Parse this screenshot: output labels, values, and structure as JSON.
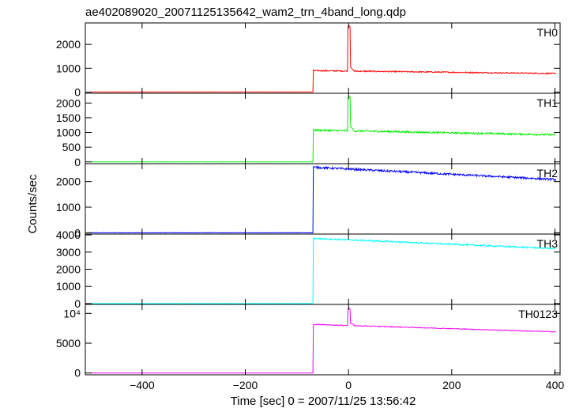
{
  "chart_data": {
    "type": "line",
    "title": "ae402089020_20071125135642_wam2_trn_4band_long.qdp",
    "xlabel": "Time [sec] 0 = 2007/11/25 13:56:42",
    "ylabel": "Counts/sec",
    "xlim": [
      -510,
      410
    ],
    "xticks": [
      -400,
      -200,
      0,
      200,
      400
    ],
    "xtick_labels": [
      "−400",
      "−200",
      "0",
      "200",
      "400"
    ],
    "grid": false,
    "panels": [
      {
        "name": "TH0",
        "color": "#ff0000",
        "ylim": [
          -50,
          2900
        ],
        "yticks": [
          0,
          1000,
          2000
        ],
        "ytick_labels": [
          "0",
          "1000",
          "2000"
        ],
        "baseline": 5,
        "onset": -68,
        "jump": 900,
        "decay_end": 780,
        "peak_time": 2,
        "peak_value": 2800,
        "tail_value": 1100,
        "noise": 25
      },
      {
        "name": "TH1",
        "color": "#00ee00",
        "ylim": [
          -60,
          2330
        ],
        "yticks": [
          0,
          500,
          1000,
          1500,
          2000
        ],
        "ytick_labels": [
          "0",
          "500",
          "1000",
          "1500",
          "2000"
        ],
        "baseline": 0,
        "onset": -68,
        "jump": 1080,
        "decay_end": 920,
        "peak_time": 2,
        "peak_value": 2280,
        "tail_value": 1250,
        "noise": 30
      },
      {
        "name": "TH2",
        "color": "#0000ff",
        "ylim": [
          -50,
          2700
        ],
        "yticks": [
          0,
          1000,
          2000
        ],
        "ytick_labels": [
          "0",
          "1000",
          "2000"
        ],
        "baseline": 0,
        "onset": -68,
        "jump": 2560,
        "decay_end": 2080,
        "peak_time": null,
        "peak_value": null,
        "tail_value": null,
        "noise": 40
      },
      {
        "name": "TH3",
        "color": "#00ffff",
        "ylim": [
          -50,
          4050
        ],
        "yticks": [
          0,
          1000,
          2000,
          3000,
          4000
        ],
        "ytick_labels": [
          "0",
          "1000",
          "2000",
          "3000",
          "4000"
        ],
        "baseline": 0,
        "onset": -68,
        "jump": 3800,
        "decay_end": 3200,
        "peak_time": null,
        "peak_value": null,
        "tail_value": null,
        "noise": 45
      },
      {
        "name": "TH0123",
        "color": "#ee00ee",
        "ylim": [
          -300,
          11500
        ],
        "yticks": [
          0,
          5000,
          10000
        ],
        "ytick_labels": [
          "0",
          "5000",
          "10⁴"
        ],
        "baseline": 0,
        "onset": -68,
        "jump": 8150,
        "decay_end": 6900,
        "peak_time": 2,
        "peak_value": 10900,
        "tail_value": 8400,
        "noise": 60
      }
    ]
  }
}
